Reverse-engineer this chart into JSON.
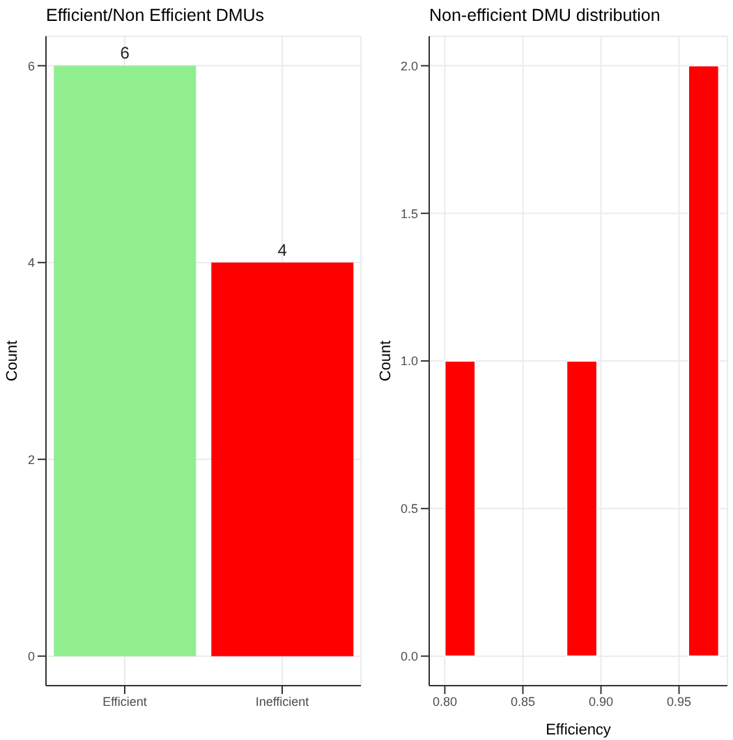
{
  "chart_data": [
    {
      "type": "bar",
      "title": "Efficient/Non Efficient DMUs",
      "ylabel": "Count",
      "categories": [
        "Efficient",
        "Inefficient"
      ],
      "values": [
        6,
        4
      ],
      "colors": [
        "#90ee90",
        "#ff0000"
      ],
      "ylim": [
        -0.3,
        6.3
      ],
      "yticks": [
        0,
        2,
        4,
        6
      ],
      "grid": true,
      "data_labels": true
    },
    {
      "type": "histogram",
      "title": "Non-efficient DMU distribution",
      "xlabel": "Efficiency",
      "ylabel": "Count",
      "bins": [
        0.8,
        0.8195,
        0.839,
        0.8585,
        0.878,
        0.8975,
        0.917,
        0.9365,
        0.956,
        0.9755
      ],
      "values": [
        1,
        0,
        0,
        0,
        1,
        0,
        0,
        0,
        2
      ],
      "color": "#ff0000",
      "xlim": [
        0.79,
        0.981
      ],
      "xticks": [
        {
          "value": 0.8,
          "label": "0.80"
        },
        {
          "value": 0.85,
          "label": "0.85"
        },
        {
          "value": 0.9,
          "label": "0.90"
        },
        {
          "value": 0.95,
          "label": "0.95"
        }
      ],
      "ylim": [
        -0.1,
        2.1
      ],
      "yticks": [
        {
          "value": 0,
          "label": "0.0"
        },
        {
          "value": 0.5,
          "label": "0.5"
        },
        {
          "value": 1,
          "label": "1.0"
        },
        {
          "value": 1.5,
          "label": "1.5"
        },
        {
          "value": 2,
          "label": "2.0"
        }
      ],
      "grid": true
    }
  ]
}
